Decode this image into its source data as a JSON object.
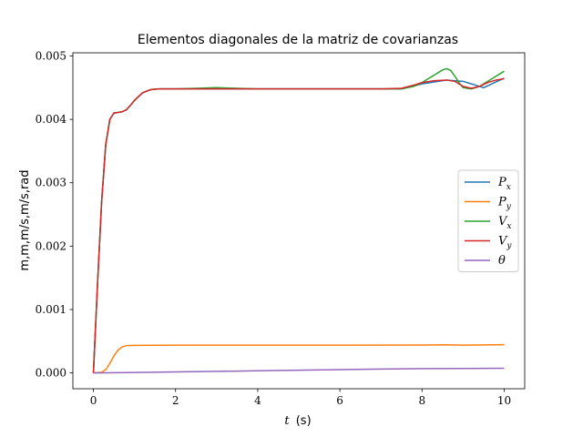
{
  "chart_data": {
    "type": "line",
    "title": "Elementos diagonales de la matriz de covarianzas",
    "xlabel_var": "t",
    "xlabel_unit": "(s)",
    "ylabel": "m,m,m/s,m/s,rad",
    "xlim": [
      -0.5,
      10.5
    ],
    "ylim": [
      -0.00025,
      0.00505
    ],
    "xticks": [
      0,
      2,
      4,
      6,
      8,
      10
    ],
    "xtick_labels": [
      "0",
      "2",
      "4",
      "6",
      "8",
      "10"
    ],
    "yticks": [
      0.0,
      0.001,
      0.002,
      0.003,
      0.004,
      0.005
    ],
    "ytick_labels": [
      "0.000",
      "0.001",
      "0.002",
      "0.003",
      "0.004",
      "0.005"
    ],
    "legend_position": "center-right",
    "series": [
      {
        "name": "Px",
        "label_main": "P",
        "label_sub": "x",
        "color": "#1f77b4",
        "x": [
          0,
          0.05,
          0.1,
          0.2,
          0.3,
          0.4,
          0.5,
          0.6,
          0.7,
          0.8,
          0.9,
          1.0,
          1.2,
          1.4,
          1.6,
          1.8,
          2.0,
          3.0,
          4.0,
          5.0,
          6.0,
          7.0,
          7.5,
          8.0,
          8.6,
          9.0,
          9.5,
          10.0
        ],
        "values": [
          0,
          0.0007,
          0.0014,
          0.0027,
          0.0036,
          0.004,
          0.0041,
          0.00411,
          0.00412,
          0.00415,
          0.00422,
          0.0043,
          0.00442,
          0.00447,
          0.00448,
          0.00448,
          0.00448,
          0.00448,
          0.00448,
          0.00448,
          0.00448,
          0.00448,
          0.00448,
          0.00456,
          0.00462,
          0.0046,
          0.0045,
          0.00465
        ]
      },
      {
        "name": "Py",
        "label_main": "P",
        "label_sub": "y",
        "color": "#ff7f0e",
        "x": [
          0,
          0.2,
          0.3,
          0.4,
          0.5,
          0.6,
          0.7,
          0.8,
          0.9,
          1.0,
          1.5,
          2.0,
          4.0,
          6.0,
          8.0,
          8.6,
          9.0,
          10.0
        ],
        "values": [
          0,
          1e-05,
          5e-05,
          0.00015,
          0.00027,
          0.00036,
          0.00041,
          0.00043,
          0.000432,
          0.000434,
          0.000436,
          0.000438,
          0.000438,
          0.000438,
          0.00044,
          0.000443,
          0.000438,
          0.000444
        ]
      },
      {
        "name": "Vx",
        "label_main": "V",
        "label_sub": "x",
        "color": "#2ca02c",
        "x": [
          0,
          0.05,
          0.1,
          0.2,
          0.3,
          0.4,
          0.5,
          0.6,
          0.7,
          0.8,
          0.9,
          1.0,
          1.2,
          1.4,
          1.6,
          1.8,
          2.0,
          2.5,
          3.0,
          3.5,
          4.0,
          5.0,
          6.0,
          7.0,
          7.5,
          7.8,
          8.0,
          8.2,
          8.4,
          8.5,
          8.6,
          8.7,
          8.8,
          8.9,
          9.0,
          9.2,
          9.4,
          9.6,
          9.8,
          10.0
        ],
        "values": [
          0,
          0.0007,
          0.0014,
          0.0027,
          0.0036,
          0.004,
          0.0041,
          0.00411,
          0.00412,
          0.00415,
          0.00422,
          0.0043,
          0.00442,
          0.00447,
          0.00448,
          0.00448,
          0.00448,
          0.00449,
          0.0045,
          0.00449,
          0.00448,
          0.00448,
          0.00448,
          0.00448,
          0.00448,
          0.00452,
          0.00458,
          0.00466,
          0.00474,
          0.00478,
          0.0048,
          0.00477,
          0.00468,
          0.00458,
          0.0045,
          0.00448,
          0.00452,
          0.0046,
          0.00468,
          0.00476
        ]
      },
      {
        "name": "Vy",
        "label_main": "V",
        "label_sub": "y",
        "color": "#d62728",
        "x": [
          0,
          0.05,
          0.1,
          0.2,
          0.3,
          0.4,
          0.5,
          0.6,
          0.7,
          0.8,
          0.9,
          1.0,
          1.2,
          1.4,
          1.6,
          1.8,
          2.0,
          3.0,
          4.0,
          5.0,
          6.0,
          7.0,
          7.5,
          7.8,
          8.0,
          8.3,
          8.6,
          8.8,
          9.0,
          9.2,
          9.4,
          9.6,
          9.8,
          10.0
        ],
        "values": [
          0,
          0.0007,
          0.0014,
          0.0027,
          0.0036,
          0.004,
          0.0041,
          0.00411,
          0.00412,
          0.00415,
          0.00422,
          0.0043,
          0.00442,
          0.00447,
          0.00448,
          0.00448,
          0.00448,
          0.00448,
          0.00448,
          0.00448,
          0.00448,
          0.00448,
          0.00449,
          0.00454,
          0.00458,
          0.00461,
          0.00462,
          0.0046,
          0.00452,
          0.00449,
          0.00452,
          0.00458,
          0.00462,
          0.00464
        ]
      },
      {
        "name": "theta",
        "label_main": "θ",
        "label_sub": "",
        "color": "#9467bd",
        "x": [
          0,
          1,
          2,
          3,
          4,
          5,
          6,
          7,
          8,
          9,
          10
        ],
        "values": [
          0,
          6e-06,
          1.5e-05,
          2.4e-05,
          3.3e-05,
          4.2e-05,
          5.2e-05,
          6e-05,
          6.8e-05,
          7e-05,
          7.3e-05
        ]
      }
    ]
  }
}
